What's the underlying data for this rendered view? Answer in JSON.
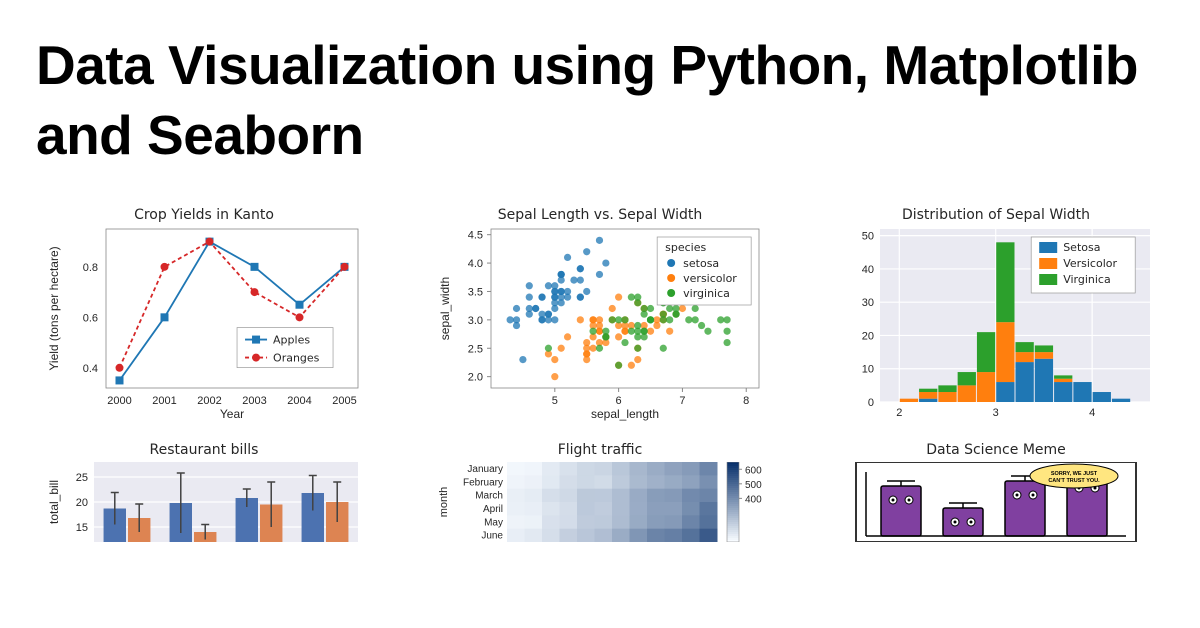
{
  "page_title": "Data Visualization using Python, Matplotlib and Seaborn",
  "chart1": {
    "type": "line",
    "title": "Crop Yields in Kanto",
    "xlabel": "Year",
    "ylabel": "Yield (tons per hectare)",
    "x_ticks": [
      2000,
      2001,
      2002,
      2003,
      2004,
      2005
    ],
    "y_ticks": [
      0.4,
      0.6,
      0.8
    ],
    "xlim": [
      1999.7,
      2005.3
    ],
    "ylim": [
      0.32,
      0.95
    ],
    "series": [
      {
        "name": "Apples",
        "color": "#1f77b4",
        "marker": "square",
        "dash": "none",
        "y": [
          0.35,
          0.6,
          0.9,
          0.8,
          0.65,
          0.8
        ]
      },
      {
        "name": "Oranges",
        "color": "#d62728",
        "marker": "circle",
        "dash": "4,3",
        "y": [
          0.4,
          0.8,
          0.9,
          0.7,
          0.6,
          0.8
        ]
      }
    ],
    "legend_labels": [
      "Apples",
      "Oranges"
    ]
  },
  "chart2": {
    "type": "scatter",
    "title": "Sepal Length vs. Sepal Width",
    "xlabel": "sepal_length",
    "ylabel": "sepal_width",
    "x_ticks": [
      5,
      6,
      7,
      8
    ],
    "y_ticks": [
      2.0,
      2.5,
      3.0,
      3.5,
      4.0,
      4.5
    ],
    "xlim": [
      4.0,
      8.2
    ],
    "ylim": [
      1.8,
      4.6
    ],
    "legend_title": "species",
    "legend_labels": [
      "setosa",
      "versicolor",
      "virginica"
    ],
    "colors": {
      "setosa": "#1f77b4",
      "versicolor": "#ff7f0e",
      "virginica": "#2ca02c"
    },
    "points": {
      "setosa": [
        [
          5.1,
          3.5
        ],
        [
          4.9,
          3.0
        ],
        [
          4.7,
          3.2
        ],
        [
          4.6,
          3.1
        ],
        [
          5.0,
          3.6
        ],
        [
          5.4,
          3.9
        ],
        [
          4.6,
          3.4
        ],
        [
          5.0,
          3.4
        ],
        [
          4.4,
          2.9
        ],
        [
          4.9,
          3.1
        ],
        [
          5.4,
          3.7
        ],
        [
          4.8,
          3.4
        ],
        [
          4.8,
          3.0
        ],
        [
          4.3,
          3.0
        ],
        [
          5.8,
          4.0
        ],
        [
          5.7,
          4.4
        ],
        [
          5.4,
          3.9
        ],
        [
          5.1,
          3.5
        ],
        [
          5.7,
          3.8
        ],
        [
          5.1,
          3.8
        ],
        [
          5.4,
          3.4
        ],
        [
          5.1,
          3.7
        ],
        [
          4.6,
          3.6
        ],
        [
          5.1,
          3.3
        ],
        [
          4.8,
          3.4
        ],
        [
          5.0,
          3.0
        ],
        [
          5.0,
          3.4
        ],
        [
          5.2,
          3.5
        ],
        [
          5.2,
          3.4
        ],
        [
          4.7,
          3.2
        ],
        [
          4.8,
          3.1
        ],
        [
          5.4,
          3.4
        ],
        [
          5.2,
          4.1
        ],
        [
          5.5,
          4.2
        ],
        [
          4.9,
          3.1
        ],
        [
          5.0,
          3.2
        ],
        [
          5.5,
          3.5
        ],
        [
          4.9,
          3.6
        ],
        [
          4.4,
          3.0
        ],
        [
          5.1,
          3.4
        ],
        [
          5.0,
          3.5
        ],
        [
          4.5,
          2.3
        ],
        [
          4.4,
          3.2
        ],
        [
          5.0,
          3.5
        ],
        [
          5.1,
          3.8
        ],
        [
          4.8,
          3.0
        ],
        [
          5.1,
          3.8
        ],
        [
          4.6,
          3.2
        ],
        [
          5.3,
          3.7
        ],
        [
          5.0,
          3.3
        ]
      ],
      "versicolor": [
        [
          7.0,
          3.2
        ],
        [
          6.4,
          3.2
        ],
        [
          6.9,
          3.1
        ],
        [
          5.5,
          2.3
        ],
        [
          6.5,
          2.8
        ],
        [
          5.7,
          2.8
        ],
        [
          6.3,
          3.3
        ],
        [
          4.9,
          2.4
        ],
        [
          6.6,
          2.9
        ],
        [
          5.2,
          2.7
        ],
        [
          5.0,
          2.0
        ],
        [
          5.9,
          3.0
        ],
        [
          6.0,
          2.2
        ],
        [
          6.1,
          2.9
        ],
        [
          5.6,
          2.9
        ],
        [
          6.7,
          3.1
        ],
        [
          5.6,
          3.0
        ],
        [
          5.8,
          2.7
        ],
        [
          6.2,
          2.2
        ],
        [
          5.6,
          2.5
        ],
        [
          5.9,
          3.2
        ],
        [
          6.1,
          2.8
        ],
        [
          6.3,
          2.5
        ],
        [
          6.1,
          2.8
        ],
        [
          6.4,
          2.9
        ],
        [
          6.6,
          3.0
        ],
        [
          6.8,
          2.8
        ],
        [
          6.7,
          3.0
        ],
        [
          6.0,
          2.9
        ],
        [
          5.7,
          2.6
        ],
        [
          5.5,
          2.4
        ],
        [
          5.5,
          2.4
        ],
        [
          5.8,
          2.7
        ],
        [
          6.0,
          2.7
        ],
        [
          5.4,
          3.0
        ],
        [
          6.0,
          3.4
        ],
        [
          6.7,
          3.1
        ],
        [
          6.3,
          2.3
        ],
        [
          5.6,
          3.0
        ],
        [
          5.5,
          2.5
        ],
        [
          5.5,
          2.6
        ],
        [
          6.1,
          3.0
        ],
        [
          5.8,
          2.6
        ],
        [
          5.0,
          2.3
        ],
        [
          5.6,
          2.7
        ],
        [
          5.7,
          3.0
        ],
        [
          5.7,
          2.9
        ],
        [
          6.2,
          2.9
        ],
        [
          5.1,
          2.5
        ],
        [
          5.7,
          2.8
        ]
      ],
      "virginica": [
        [
          6.3,
          3.3
        ],
        [
          5.8,
          2.7
        ],
        [
          7.1,
          3.0
        ],
        [
          6.3,
          2.9
        ],
        [
          6.5,
          3.0
        ],
        [
          7.6,
          3.0
        ],
        [
          4.9,
          2.5
        ],
        [
          7.3,
          2.9
        ],
        [
          6.7,
          2.5
        ],
        [
          7.2,
          3.6
        ],
        [
          6.5,
          3.2
        ],
        [
          6.4,
          2.7
        ],
        [
          6.8,
          3.0
        ],
        [
          5.7,
          2.5
        ],
        [
          5.8,
          2.8
        ],
        [
          6.4,
          3.2
        ],
        [
          6.5,
          3.0
        ],
        [
          7.7,
          3.8
        ],
        [
          7.7,
          2.6
        ],
        [
          6.0,
          2.2
        ],
        [
          6.9,
          3.2
        ],
        [
          5.6,
          2.8
        ],
        [
          7.7,
          2.8
        ],
        [
          6.3,
          2.7
        ],
        [
          6.7,
          3.3
        ],
        [
          7.2,
          3.2
        ],
        [
          6.2,
          2.8
        ],
        [
          6.1,
          3.0
        ],
        [
          6.4,
          2.8
        ],
        [
          7.2,
          3.0
        ],
        [
          7.4,
          2.8
        ],
        [
          7.9,
          3.8
        ],
        [
          6.4,
          2.8
        ],
        [
          6.3,
          2.8
        ],
        [
          6.1,
          2.6
        ],
        [
          7.7,
          3.0
        ],
        [
          6.3,
          3.4
        ],
        [
          6.4,
          3.1
        ],
        [
          6.0,
          3.0
        ],
        [
          6.9,
          3.1
        ],
        [
          6.7,
          3.1
        ],
        [
          6.9,
          3.1
        ],
        [
          5.8,
          2.7
        ],
        [
          6.8,
          3.2
        ],
        [
          6.7,
          3.3
        ],
        [
          6.7,
          3.0
        ],
        [
          6.3,
          2.5
        ],
        [
          6.5,
          3.0
        ],
        [
          6.2,
          3.4
        ],
        [
          5.9,
          3.0
        ]
      ]
    }
  },
  "chart3": {
    "type": "stacked-hist",
    "title": "Distribution of Sepal Width",
    "x_ticks": [
      2,
      3,
      4
    ],
    "y_ticks": [
      0,
      10,
      20,
      30,
      40,
      50
    ],
    "xlim": [
      1.8,
      4.6
    ],
    "ylim": [
      0,
      52
    ],
    "legend_labels": [
      "Setosa",
      "Versicolor",
      "Virginica"
    ],
    "colors": {
      "Setosa": "#1f77b4",
      "Versicolor": "#ff7f0e",
      "Virginica": "#2ca02c"
    },
    "bin_edges": [
      2.0,
      2.2,
      2.4,
      2.6,
      2.8,
      3.0,
      3.2,
      3.4,
      3.6,
      3.8,
      4.0,
      4.2,
      4.4
    ],
    "stacks": [
      {
        "Setosa": 0,
        "Versicolor": 1,
        "Virginica": 0
      },
      {
        "Setosa": 1,
        "Versicolor": 2,
        "Virginica": 1
      },
      {
        "Setosa": 0,
        "Versicolor": 3,
        "Virginica": 2
      },
      {
        "Setosa": 0,
        "Versicolor": 5,
        "Virginica": 4
      },
      {
        "Setosa": 0,
        "Versicolor": 9,
        "Virginica": 12
      },
      {
        "Setosa": 6,
        "Versicolor": 18,
        "Virginica": 24
      },
      {
        "Setosa": 12,
        "Versicolor": 3,
        "Virginica": 3
      },
      {
        "Setosa": 13,
        "Versicolor": 2,
        "Virginica": 2
      },
      {
        "Setosa": 6,
        "Versicolor": 1,
        "Virginica": 1
      },
      {
        "Setosa": 6,
        "Versicolor": 0,
        "Virginica": 0
      },
      {
        "Setosa": 3,
        "Versicolor": 0,
        "Virginica": 0
      },
      {
        "Setosa": 1,
        "Versicolor": 0,
        "Virginica": 0
      }
    ]
  },
  "chart4": {
    "type": "grouped-bar",
    "title": "Restaurant bills",
    "ylabel": "total_bill",
    "y_ticks": [
      15,
      20,
      25
    ],
    "ylim": [
      12,
      28
    ],
    "bar_colors": [
      "#4c72b0",
      "#dd8452"
    ],
    "err_color": "#424242",
    "groups": [
      {
        "vals": [
          18.7,
          16.8
        ],
        "err": [
          3.2,
          2.8
        ]
      },
      {
        "vals": [
          19.8,
          14.0
        ],
        "err": [
          6.0,
          1.5
        ]
      },
      {
        "vals": [
          20.8,
          19.5
        ],
        "err": [
          1.8,
          4.5
        ]
      },
      {
        "vals": [
          21.8,
          20.0
        ],
        "err": [
          3.5,
          4.0
        ]
      }
    ]
  },
  "chart5": {
    "type": "heatmap",
    "title": "Flight traffic",
    "ylabel": "month",
    "y_categories": [
      "January",
      "February",
      "March",
      "April",
      "May",
      "June"
    ],
    "colorbar_ticks": [
      400,
      500,
      600
    ],
    "cmin": 100,
    "cmax": 650,
    "cmap_low": "#f7fbff",
    "cmap_high": "#08306b",
    "rows": [
      [
        112,
        115,
        145,
        171,
        196,
        204,
        242,
        284,
        315,
        340,
        360,
        417
      ],
      [
        118,
        126,
        150,
        180,
        196,
        188,
        233,
        277,
        301,
        318,
        342,
        391
      ],
      [
        132,
        141,
        178,
        193,
        236,
        235,
        267,
        317,
        356,
        362,
        406,
        419
      ],
      [
        129,
        135,
        163,
        181,
        235,
        227,
        269,
        313,
        348,
        348,
        396,
        461
      ],
      [
        121,
        125,
        172,
        183,
        229,
        234,
        270,
        318,
        355,
        363,
        420,
        472
      ],
      [
        135,
        149,
        178,
        218,
        243,
        264,
        315,
        374,
        422,
        435,
        472,
        535
      ]
    ]
  },
  "chart6": {
    "type": "infographic",
    "title": "Data Science Meme",
    "bar_color": "#8040a0",
    "speech_text": "SORRY, WE JUST CAN'T TRUST YOU."
  }
}
